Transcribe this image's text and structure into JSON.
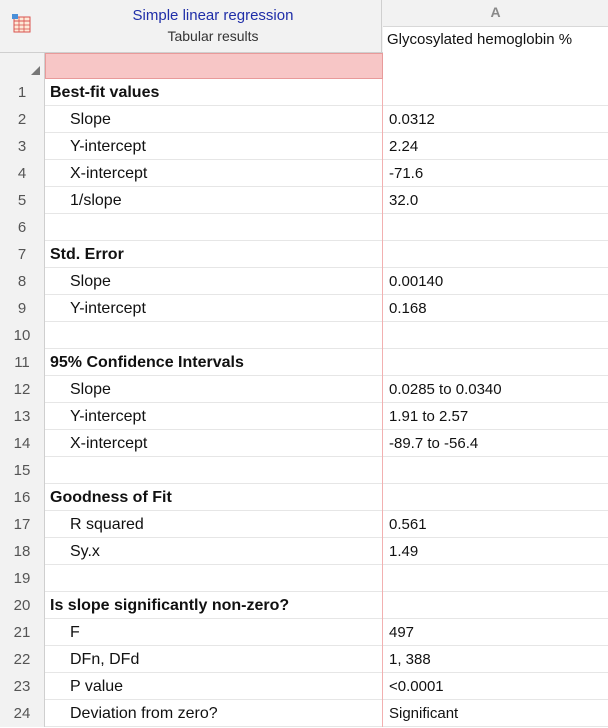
{
  "header": {
    "title": "Simple linear regression",
    "subtitle": "Tabular results",
    "column_letter": "A",
    "column_title": "Glycosylated hemoglobin %",
    "corner_icon": "table-grid-icon"
  },
  "rows": [
    {
      "num": "1",
      "label": "Best-fit values",
      "value": "",
      "heading": true
    },
    {
      "num": "2",
      "label": "Slope",
      "value": "0.0312",
      "heading": false
    },
    {
      "num": "3",
      "label": "Y-intercept",
      "value": "2.24",
      "heading": false
    },
    {
      "num": "4",
      "label": "X-intercept",
      "value": "-71.6",
      "heading": false
    },
    {
      "num": "5",
      "label": "1/slope",
      "value": "32.0",
      "heading": false
    },
    {
      "num": "6",
      "label": "",
      "value": "",
      "heading": false
    },
    {
      "num": "7",
      "label": "Std. Error",
      "value": "",
      "heading": true
    },
    {
      "num": "8",
      "label": "Slope",
      "value": "0.00140",
      "heading": false
    },
    {
      "num": "9",
      "label": "Y-intercept",
      "value": "0.168",
      "heading": false
    },
    {
      "num": "10",
      "label": "",
      "value": "",
      "heading": false
    },
    {
      "num": "11",
      "label": "95% Confidence Intervals",
      "value": "",
      "heading": true
    },
    {
      "num": "12",
      "label": "Slope",
      "value": "0.0285 to 0.0340",
      "heading": false
    },
    {
      "num": "13",
      "label": "Y-intercept",
      "value": "1.91 to 2.57",
      "heading": false
    },
    {
      "num": "14",
      "label": "X-intercept",
      "value": "-89.7 to -56.4",
      "heading": false
    },
    {
      "num": "15",
      "label": "",
      "value": "",
      "heading": false
    },
    {
      "num": "16",
      "label": "Goodness of Fit",
      "value": "",
      "heading": true
    },
    {
      "num": "17",
      "label": "R squared",
      "value": "0.561",
      "heading": false
    },
    {
      "num": "18",
      "label": "Sy.x",
      "value": "1.49",
      "heading": false
    },
    {
      "num": "19",
      "label": "",
      "value": "",
      "heading": false
    },
    {
      "num": "20",
      "label": "Is slope significantly non-zero?",
      "value": "",
      "heading": true
    },
    {
      "num": "21",
      "label": "F",
      "value": "497",
      "heading": false
    },
    {
      "num": "22",
      "label": "DFn, DFd",
      "value": "1, 388",
      "heading": false
    },
    {
      "num": "23",
      "label": "P value",
      "value": "<0.0001",
      "heading": false
    },
    {
      "num": "24",
      "label": "Deviation from zero?",
      "value": "Significant",
      "heading": false
    }
  ],
  "colors": {
    "title_blue": "#1f2ea8",
    "header_gray": "#f2f2f2",
    "pink_fill": "#f7c6c6"
  }
}
